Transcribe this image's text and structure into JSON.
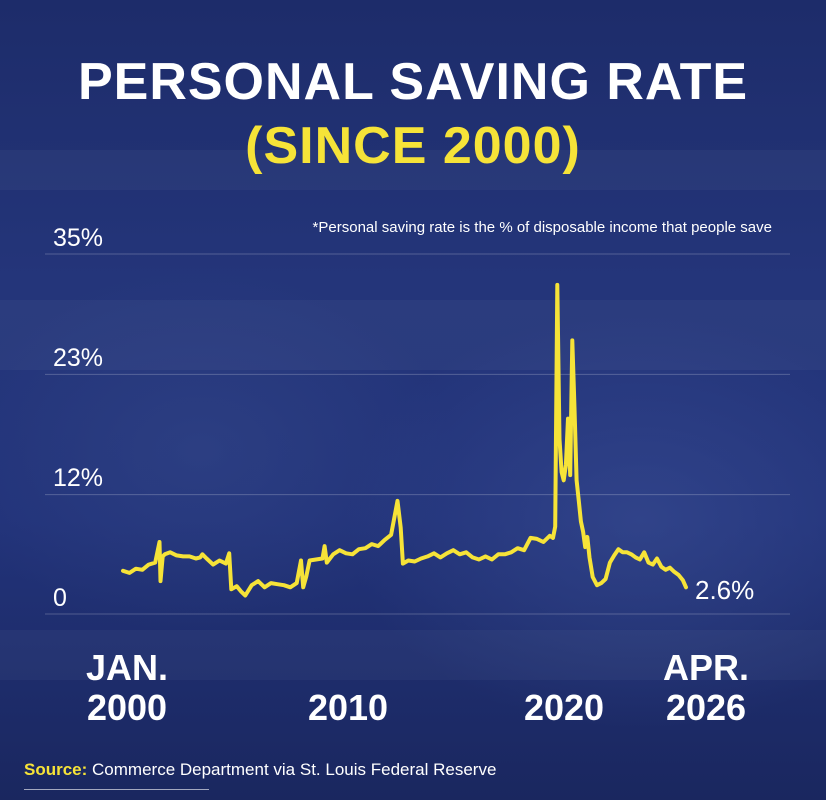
{
  "header": {
    "title": "PERSONAL SAVING RATE",
    "subtitle": "(SINCE 2000)"
  },
  "note": "*Personal saving rate is the % of disposable income that people save",
  "source": {
    "label": "Source:",
    "text": " Commerce Department via St. Louis Federal Reserve"
  },
  "colors": {
    "line": "#f6e338",
    "accent": "#f6e338",
    "background": "#22337a"
  },
  "chart_data": {
    "type": "line",
    "ylim": [
      0,
      35
    ],
    "yticks": [
      {
        "value": 0,
        "label": "0"
      },
      {
        "value": 11.6,
        "label": "12%"
      },
      {
        "value": 23.3,
        "label": "23%"
      },
      {
        "value": 35,
        "label": "35%"
      }
    ],
    "xticks": [
      {
        "label_line1": "JAN.",
        "label_line2": "2000",
        "x": 2000.0
      },
      {
        "label_line1": "",
        "label_line2": "2010",
        "x": 2010.0
      },
      {
        "label_line1": "",
        "label_line2": "2020",
        "x": 2020.0
      },
      {
        "label_line1": "APR.",
        "label_line2": "2026",
        "x": 2026.25
      }
    ],
    "last_value_label": "2.6%",
    "grid": true,
    "series": [
      {
        "x": [
          2000.0,
          2000.3,
          2000.6,
          2000.9,
          2001.2,
          2001.5,
          2001.7,
          2001.75,
          2001.85,
          2001.95,
          2002.2,
          2002.5,
          2002.8,
          2003.1,
          2003.4,
          2003.6,
          2003.7,
          2003.9,
          2004.2,
          2004.5,
          2004.8,
          2004.95,
          2005.05,
          2005.3,
          2005.5,
          2005.7,
          2006.0,
          2006.3,
          2006.6,
          2006.9,
          2007.2,
          2007.5,
          2007.8,
          2008.1,
          2008.3,
          2008.4,
          2008.55,
          2008.7,
          2009.0,
          2009.3,
          2009.4,
          2009.5,
          2009.8,
          2010.1,
          2010.4,
          2010.7,
          2011.0,
          2011.3,
          2011.6,
          2011.9,
          2012.2,
          2012.5,
          2012.8,
          2012.95,
          2013.05,
          2013.3,
          2013.6,
          2013.9,
          2014.2,
          2014.5,
          2014.8,
          2015.1,
          2015.4,
          2015.7,
          2016.0,
          2016.3,
          2016.6,
          2016.9,
          2017.2,
          2017.5,
          2017.8,
          2018.1,
          2018.4,
          2018.7,
          2019.0,
          2019.3,
          2019.6,
          2019.9,
          2020.05,
          2020.15,
          2020.25,
          2020.35,
          2020.45,
          2020.55,
          2020.65,
          2020.75,
          2020.85,
          2020.95,
          2021.05,
          2021.15,
          2021.25,
          2021.35,
          2021.45,
          2021.55,
          2021.65,
          2021.75,
          2021.9,
          2022.1,
          2022.3,
          2022.5,
          2022.7,
          2022.9,
          2023.1,
          2023.3,
          2023.5,
          2023.7,
          2023.9,
          2024.1,
          2024.3,
          2024.5,
          2024.7,
          2024.9,
          2025.1,
          2025.3,
          2025.5,
          2025.7,
          2025.9,
          2026.1,
          2026.25
        ],
        "values": [
          4.2,
          4.0,
          4.4,
          4.3,
          4.8,
          5.0,
          7.0,
          3.2,
          5.6,
          5.8,
          6.0,
          5.7,
          5.6,
          5.6,
          5.4,
          5.5,
          5.8,
          5.4,
          4.8,
          5.2,
          4.9,
          5.9,
          2.4,
          2.7,
          2.2,
          1.8,
          2.8,
          3.2,
          2.6,
          3.0,
          2.9,
          2.8,
          2.6,
          3.0,
          5.2,
          2.6,
          3.7,
          5.2,
          5.3,
          5.4,
          6.6,
          5.0,
          5.8,
          6.2,
          5.9,
          5.8,
          6.3,
          6.4,
          6.8,
          6.6,
          7.2,
          7.7,
          11.0,
          8.4,
          4.9,
          5.2,
          5.1,
          5.4,
          5.6,
          5.9,
          5.5,
          5.9,
          6.2,
          5.8,
          6.0,
          5.5,
          5.3,
          5.6,
          5.3,
          5.8,
          5.8,
          6.0,
          6.4,
          6.2,
          7.4,
          7.3,
          7.0,
          7.6,
          7.4,
          8.5,
          32.0,
          17.0,
          13.8,
          13.0,
          14.5,
          19.0,
          13.5,
          26.6,
          20.0,
          13.0,
          11.0,
          9.0,
          8.0,
          6.5,
          7.5,
          5.5,
          3.6,
          2.8,
          3.0,
          3.4,
          5.0,
          5.7,
          6.3,
          6.0,
          6.0,
          5.8,
          5.5,
          5.3,
          6.0,
          5.0,
          4.8,
          5.4,
          4.6,
          4.3,
          4.5,
          4.1,
          3.8,
          3.3,
          2.6
        ]
      }
    ]
  }
}
